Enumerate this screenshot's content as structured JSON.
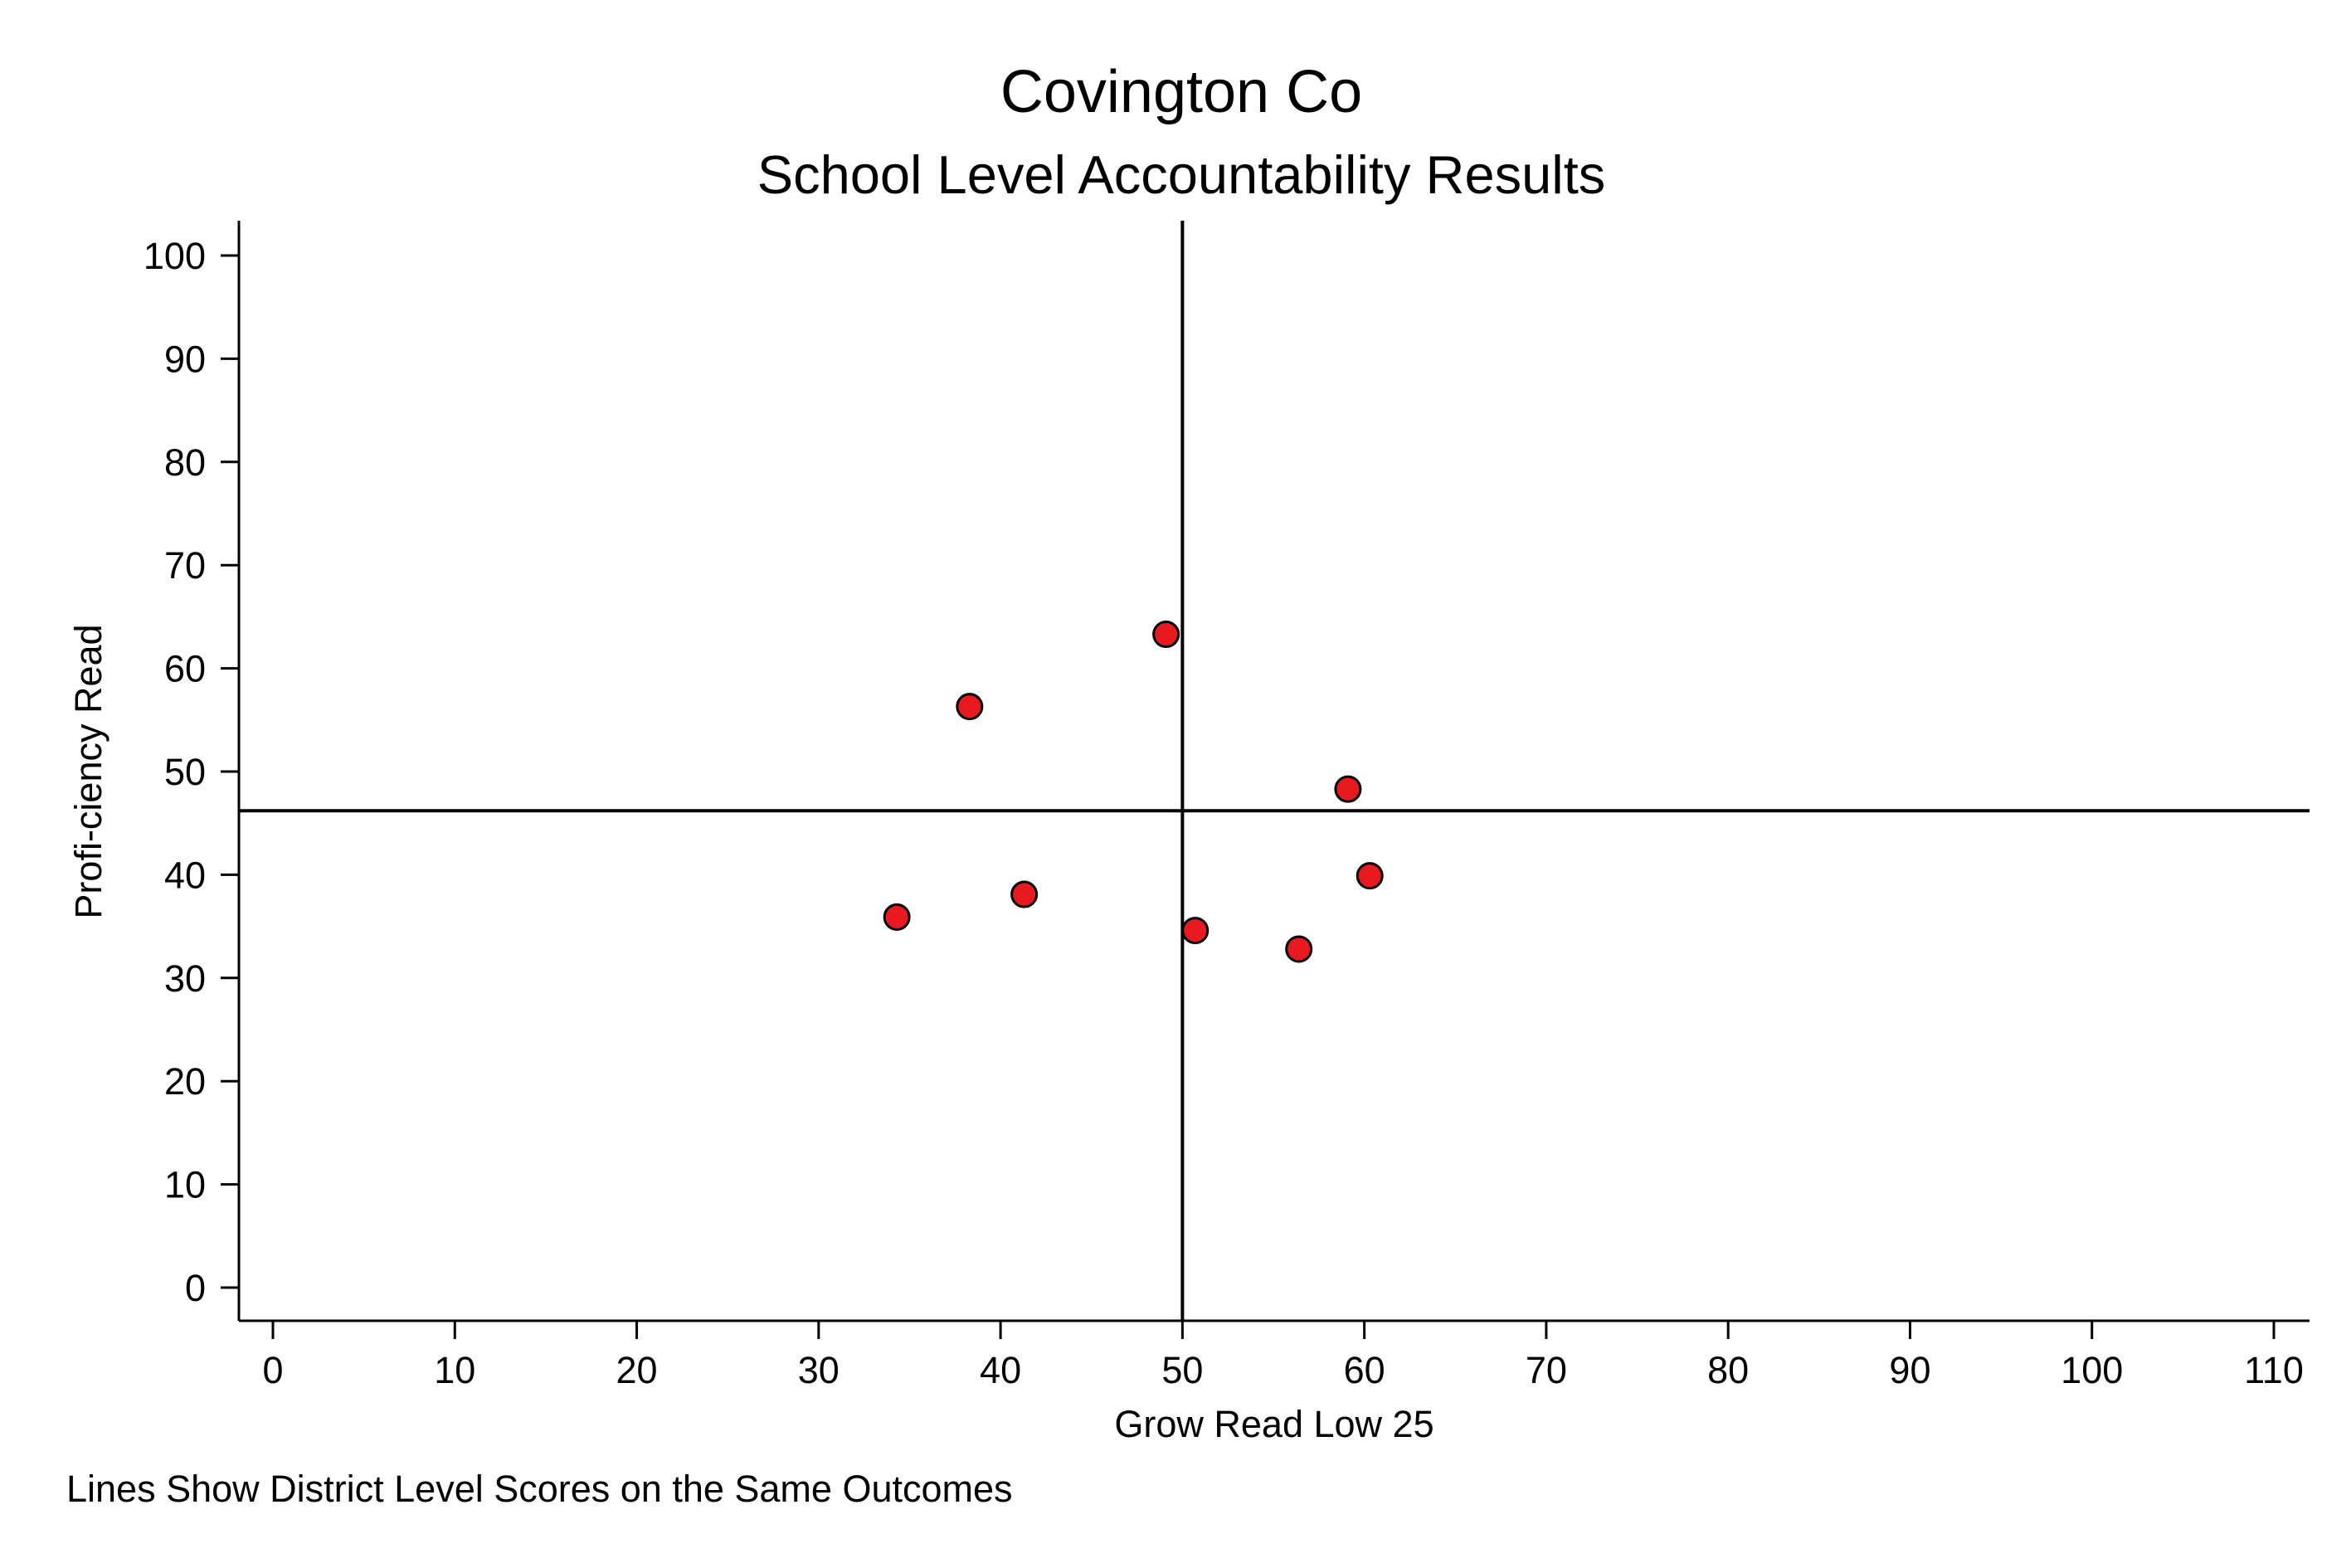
{
  "chart_data": {
    "type": "scatter",
    "title": "Covington Co",
    "subtitle": "School Level Accountability Results",
    "xlabel": "Grow Read Low 25",
    "ylabel": "Profi-ciency Read",
    "note": "Lines Show District Level Scores on the Same Outcomes",
    "xlim": [
      0,
      110
    ],
    "ylim": [
      0,
      100
    ],
    "x_ticks": [
      "0",
      "10",
      "20",
      "30",
      "40",
      "50",
      "60",
      "70",
      "80",
      "90",
      "100",
      "110"
    ],
    "y_ticks": [
      "0",
      "10",
      "20",
      "30",
      "40",
      "50",
      "60",
      "70",
      "80",
      "90",
      "100"
    ],
    "grid": false,
    "reference_lines": {
      "vertical_x": 50,
      "horizontal_y": 46.2
    },
    "marker_color": "#e8191f",
    "marker_edge_color": "#000000",
    "points": [
      {
        "x": 34.3,
        "y": 35.9
      },
      {
        "x": 38.3,
        "y": 56.3
      },
      {
        "x": 41.3,
        "y": 38.1
      },
      {
        "x": 49.1,
        "y": 63.3
      },
      {
        "x": 50.7,
        "y": 34.6
      },
      {
        "x": 56.4,
        "y": 32.8
      },
      {
        "x": 59.1,
        "y": 48.3
      },
      {
        "x": 60.3,
        "y": 39.9
      }
    ]
  }
}
